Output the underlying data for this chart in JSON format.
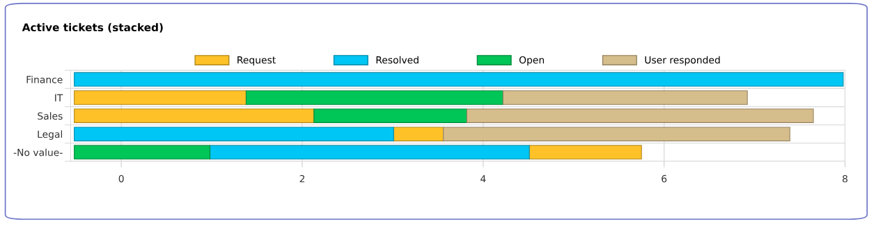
{
  "chart_data": {
    "type": "bar",
    "title": "Active tickets (stacked)",
    "orientation": "horizontal",
    "categories": [
      "Finance",
      "IT",
      "Sales",
      "Legal",
      "-No value-"
    ],
    "series": [
      {
        "name": "Request",
        "color": "#fec228",
        "values": [
          null,
          1.9,
          2.65,
          0.55,
          1.24
        ],
        "base": [
          null,
          -0.52,
          -0.52,
          3.01,
          4.51
        ]
      },
      {
        "name": "Resolved",
        "color": "#00c6f5",
        "values": [
          8.5,
          null,
          null,
          3.53,
          3.53
        ],
        "base": [
          -0.52,
          null,
          null,
          -0.52,
          0.98
        ]
      },
      {
        "name": "Open",
        "color": "#00c557",
        "values": [
          null,
          2.84,
          1.69,
          null,
          1.5
        ],
        "base": [
          null,
          1.38,
          2.13,
          null,
          -0.52
        ]
      },
      {
        "name": "User responded",
        "color": "#d6bd8c",
        "values": [
          null,
          2.7,
          3.83,
          3.83,
          null
        ],
        "base": [
          null,
          4.22,
          3.82,
          3.56,
          null
        ]
      }
    ],
    "xlim": [
      -0.56,
      8
    ],
    "xticks": [
      0,
      2,
      4,
      6,
      8
    ],
    "grid": true,
    "legend": "top"
  }
}
